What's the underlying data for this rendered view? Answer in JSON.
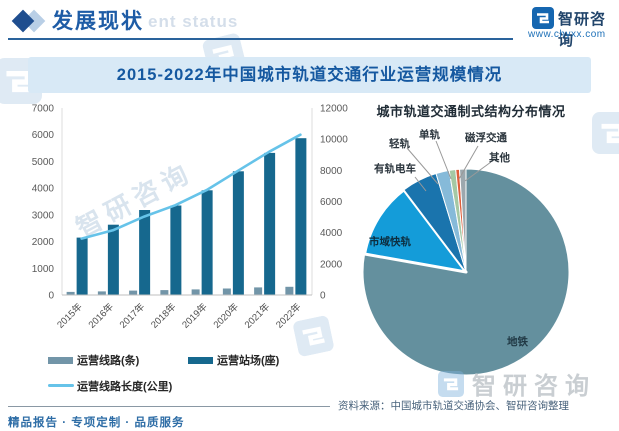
{
  "header": {
    "title": "发展现状",
    "ghost_text": "ent status",
    "brand": "智研咨询",
    "website": "www.chyxx.com"
  },
  "banner": {
    "title": "2015-2022年中国城市轨道交通行业运营规模情况"
  },
  "chart_data": [
    {
      "type": "bar",
      "categories": [
        "2015年",
        "2016年",
        "2017年",
        "2018年",
        "2019年",
        "2020年",
        "2021年",
        "2022年"
      ],
      "series": [
        {
          "name": "运营线路(条)",
          "type": "bar",
          "axis": "left",
          "color": "#7295A8",
          "values": [
            116,
            133,
            165,
            185,
            208,
            244,
            283,
            308
          ]
        },
        {
          "name": "运营站场(座)",
          "type": "bar",
          "axis": "left",
          "color": "#16688E",
          "values": [
            2150,
            2630,
            3180,
            3350,
            3920,
            4630,
            5320,
            5870
          ]
        },
        {
          "name": "运营线路长度(公里)",
          "type": "line",
          "axis": "right",
          "color": "#66C3E9",
          "values": [
            3618,
            4153,
            5033,
            5761,
            6730,
            7970,
            9192,
            10287
          ]
        }
      ],
      "left_axis": {
        "min": 0,
        "max": 7000,
        "ticks": [
          0,
          1000,
          2000,
          3000,
          4000,
          5000,
          6000,
          7000
        ]
      },
      "right_axis": {
        "min": 0,
        "max": 12000,
        "ticks": [
          0,
          2000,
          4000,
          6000,
          8000,
          10000,
          12000
        ]
      },
      "grid": false,
      "legend_position": "bottom"
    },
    {
      "type": "pie",
      "title": "城市轨道交通制式结构分布情况",
      "slices": [
        {
          "label": "地铁",
          "value": 77.8,
          "color": "#64909E"
        },
        {
          "label": "市域快轨",
          "value": 11.9,
          "color": "#149CD9",
          "exploded_border": true
        },
        {
          "label": "有轨电车",
          "value": 5.6,
          "color": "#1A74AD"
        },
        {
          "label": "轻轨",
          "value": 2.1,
          "color": "#86BAD9"
        },
        {
          "label": "单轨",
          "value": 1.0,
          "color": "#A5C8A4"
        },
        {
          "label": "磁浮交通",
          "value": 0.6,
          "color": "#DE5F3B"
        },
        {
          "label": "其他",
          "value": 1.0,
          "color": "#9CA8AE"
        }
      ]
    }
  ],
  "footer": {
    "tagline": "精品报告 · 专项定制 · 品质服务",
    "source": "资料来源：中国城市轨道交通协会、智研咨询整理"
  },
  "watermark": {
    "brand": "智研咨询"
  },
  "colors": {
    "header_blue": "#1e5ca6",
    "banner_bg": "#d8e9f6",
    "banner_text": "#1558a0",
    "link_blue": "#1d70b8",
    "logo_blue": "#1566B0"
  }
}
